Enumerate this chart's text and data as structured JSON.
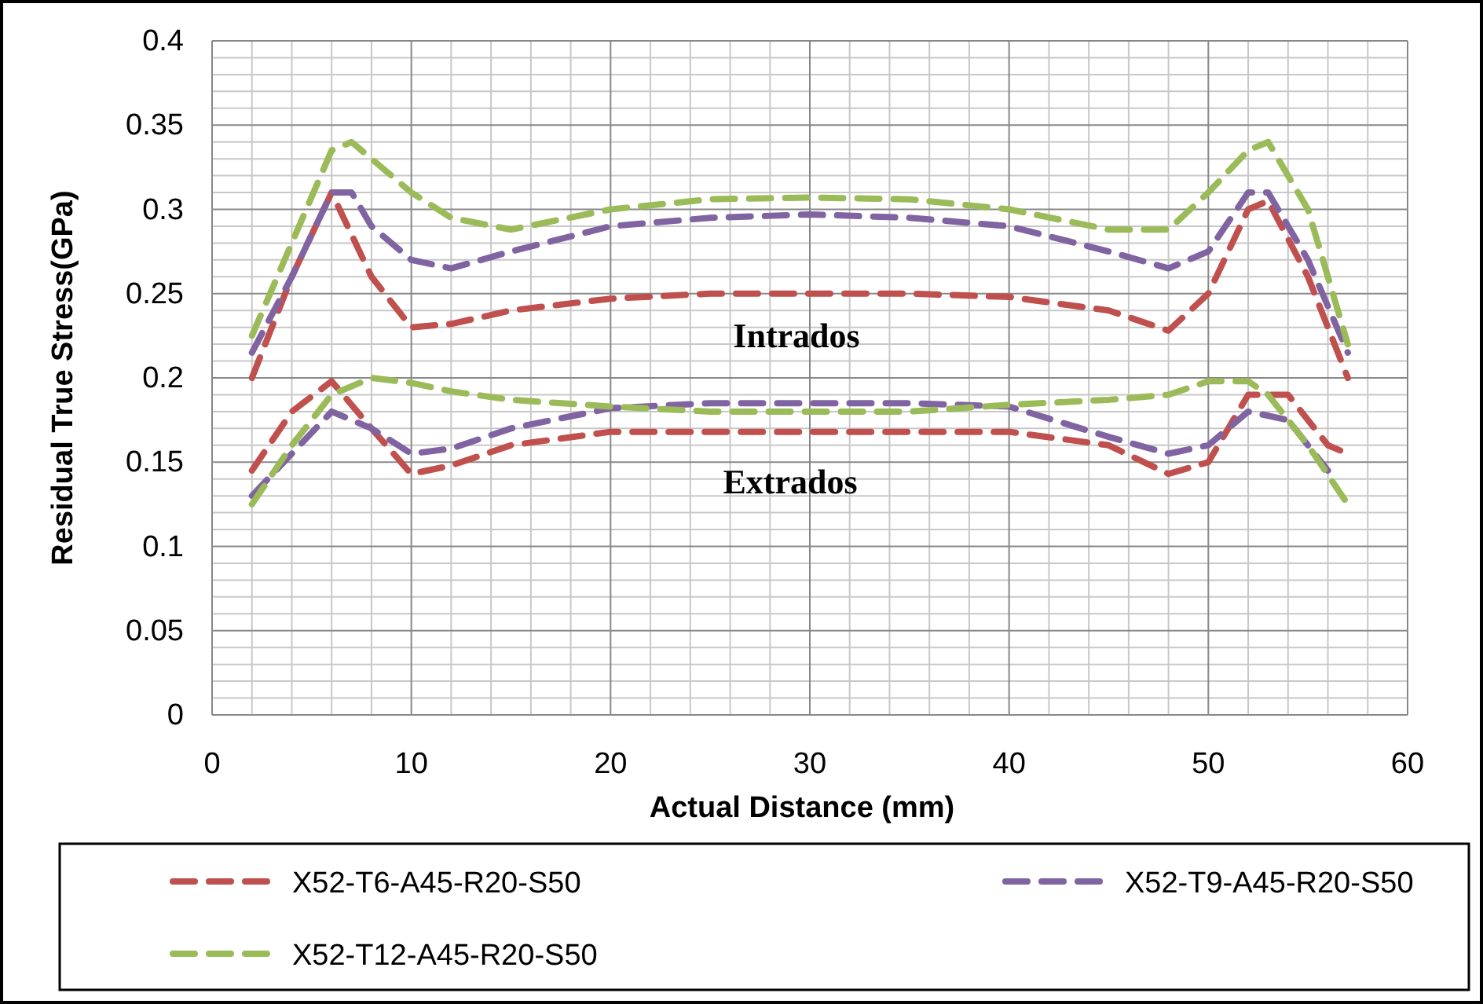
{
  "chart_data": {
    "type": "line",
    "xlabel": "Actual Distance (mm)",
    "ylabel": "Residual True Stress(GPa)",
    "xlim": [
      0,
      60
    ],
    "xticks": [
      0,
      10,
      20,
      30,
      40,
      50,
      60
    ],
    "ylim": [
      0,
      0.4
    ],
    "yticks": [
      0,
      0.05,
      0.1,
      0.15,
      0.2,
      0.25,
      0.3,
      0.35,
      0.4
    ],
    "grid": true,
    "legend": "bottom",
    "line_style": "dashed",
    "marker": "none",
    "annotations": [
      "Intrados",
      "Extrados"
    ],
    "series": [
      {
        "name": "X52-T6-A45-R20-S50",
        "color": "#c0504d",
        "x": [
          2,
          4,
          6,
          8,
          10,
          12,
          15,
          20,
          25,
          30,
          35,
          40,
          45,
          48,
          50,
          52,
          53,
          55,
          57
        ],
        "values": [
          0.2,
          0.26,
          0.31,
          0.26,
          0.23,
          0.232,
          0.24,
          0.247,
          0.25,
          0.25,
          0.25,
          0.248,
          0.24,
          0.228,
          0.25,
          0.3,
          0.305,
          0.26,
          0.2
        ]
      },
      {
        "name": "X52-T9-A45-R20-S50",
        "color": "#8064a2",
        "x": [
          2,
          4,
          6,
          7,
          8,
          10,
          12,
          15,
          20,
          25,
          30,
          35,
          40,
          45,
          48,
          50,
          52,
          53,
          55,
          57
        ],
        "values": [
          0.215,
          0.26,
          0.31,
          0.31,
          0.29,
          0.27,
          0.265,
          0.275,
          0.29,
          0.295,
          0.297,
          0.295,
          0.29,
          0.275,
          0.265,
          0.275,
          0.31,
          0.31,
          0.27,
          0.215
        ]
      },
      {
        "name": "X52-T12-A45-R20-S50",
        "color": "#9bbb59",
        "x": [
          2,
          4,
          6,
          7,
          8,
          10,
          12,
          15,
          20,
          25,
          30,
          35,
          40,
          45,
          48,
          50,
          52,
          53,
          55,
          57
        ],
        "values": [
          0.225,
          0.28,
          0.335,
          0.34,
          0.33,
          0.31,
          0.295,
          0.288,
          0.3,
          0.306,
          0.307,
          0.306,
          0.3,
          0.288,
          0.288,
          0.31,
          0.335,
          0.34,
          0.3,
          0.22
        ]
      },
      {
        "color": "#c0504d",
        "x": [
          2,
          4,
          6,
          8,
          10,
          12,
          15,
          20,
          25,
          30,
          35,
          40,
          45,
          48,
          50,
          52,
          54,
          56,
          57
        ],
        "values": [
          0.145,
          0.18,
          0.198,
          0.17,
          0.143,
          0.148,
          0.16,
          0.168,
          0.168,
          0.168,
          0.168,
          0.168,
          0.16,
          0.143,
          0.15,
          0.19,
          0.19,
          0.16,
          0.155
        ]
      },
      {
        "color": "#8064a2",
        "x": [
          2,
          4,
          6,
          8,
          10,
          12,
          15,
          20,
          25,
          30,
          35,
          40,
          45,
          48,
          50,
          52,
          54,
          56
        ],
        "values": [
          0.13,
          0.155,
          0.18,
          0.17,
          0.155,
          0.158,
          0.17,
          0.182,
          0.185,
          0.185,
          0.185,
          0.183,
          0.165,
          0.155,
          0.16,
          0.18,
          0.175,
          0.145
        ]
      },
      {
        "color": "#9bbb59",
        "x": [
          2,
          4,
          6,
          8,
          10,
          12,
          15,
          20,
          25,
          30,
          35,
          40,
          45,
          48,
          50,
          52,
          53,
          55,
          57
        ],
        "values": [
          0.125,
          0.16,
          0.19,
          0.2,
          0.197,
          0.192,
          0.187,
          0.183,
          0.18,
          0.18,
          0.18,
          0.184,
          0.187,
          0.19,
          0.198,
          0.198,
          0.19,
          0.16,
          0.125
        ]
      }
    ]
  }
}
